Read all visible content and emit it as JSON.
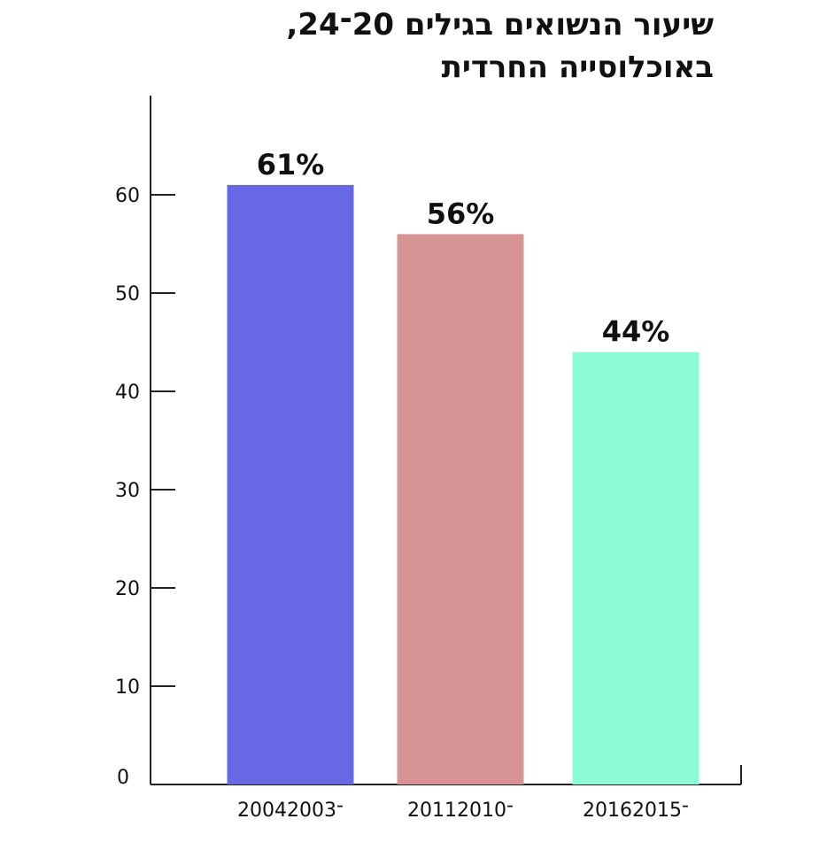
{
  "chart_data": {
    "type": "bar",
    "title_lines": [
      "שיעור הנשואים בגילים 20־24,",
      "באוכלוסייה החרדית"
    ],
    "categories": [
      "2004־2003",
      "2011־2010",
      "2016־2015"
    ],
    "values": [
      61,
      56,
      44
    ],
    "data_labels": [
      "61%",
      "56%",
      "44%"
    ],
    "colors": [
      "#6868e4",
      "#d69594",
      "#8cfcd4"
    ],
    "ylim": [
      0,
      70
    ],
    "yticks": [
      0,
      10,
      20,
      30,
      40,
      50,
      60
    ],
    "xlabel": "",
    "ylabel": "",
    "grid": false,
    "legend": "none"
  }
}
